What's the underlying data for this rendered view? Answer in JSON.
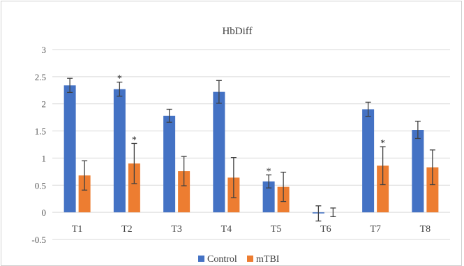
{
  "chart_data": {
    "type": "bar",
    "title": "HbDiff",
    "categories": [
      "T1",
      "T2",
      "T3",
      "T4",
      "T5",
      "T6",
      "T7",
      "T8"
    ],
    "ylim": [
      -0.5,
      3
    ],
    "yticks": [
      3,
      2.5,
      2,
      1.5,
      1,
      0.5,
      0,
      -0.5
    ],
    "ytick_labels": [
      "3",
      "2.5",
      "2",
      "1.5",
      "1",
      "0.5",
      "0",
      "-0.5"
    ],
    "grid": true,
    "legend_position": "bottom",
    "series": [
      {
        "name": "Control",
        "color": "#4472C4",
        "values": [
          2.34,
          2.27,
          1.78,
          2.22,
          0.57,
          -0.02,
          1.9,
          1.52
        ],
        "errors": [
          0.13,
          0.13,
          0.12,
          0.21,
          0.12,
          0.14,
          0.13,
          0.16
        ],
        "significant": [
          false,
          true,
          false,
          false,
          true,
          false,
          false,
          false
        ]
      },
      {
        "name": "mTBI",
        "color": "#ED7D31",
        "values": [
          0.68,
          0.9,
          0.76,
          0.64,
          0.47,
          0.0,
          0.86,
          0.83
        ],
        "errors": [
          0.27,
          0.37,
          0.27,
          0.37,
          0.27,
          0.08,
          0.35,
          0.32
        ],
        "significant": [
          false,
          true,
          false,
          false,
          false,
          false,
          true,
          false
        ]
      }
    ],
    "star_symbol": "*"
  }
}
